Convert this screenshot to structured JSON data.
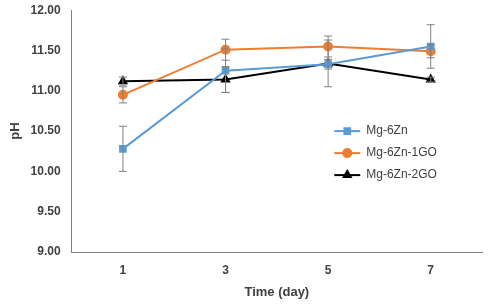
{
  "chart_data": {
    "type": "line",
    "x_label": "Time (day)",
    "y_label": "pH",
    "categories": [
      "1",
      "3",
      "5",
      "7"
    ],
    "series": [
      {
        "name": "Mg-6Zn",
        "color": "#5b9bd5",
        "marker": "square",
        "values": [
          10.28,
          11.25,
          11.33,
          11.55
        ],
        "errors": [
          0.28,
          0.27,
          0.06,
          0.27
        ]
      },
      {
        "name": "Mg-6Zn-1GO",
        "color": "#ed7d31",
        "marker": "circle",
        "values": [
          10.95,
          11.51,
          11.55,
          11.49
        ],
        "errors": [
          0.1,
          0.13,
          0.13,
          0.08
        ]
      },
      {
        "name": "Mg-6Zn-2GO",
        "color": "#000000",
        "marker": "triangle",
        "values": [
          11.12,
          11.14,
          11.34,
          11.14
        ],
        "errors": [
          0.05,
          0.16,
          0.29,
          0.03
        ]
      }
    ],
    "ylim": [
      9,
      12
    ],
    "yticks": [
      {
        "value": 9,
        "label": "9.00"
      },
      {
        "value": 9.5,
        "label": "9.50"
      },
      {
        "value": 10,
        "label": "10.00"
      },
      {
        "value": 10.5,
        "label": "10.50"
      },
      {
        "value": 11,
        "label": "11.00"
      },
      {
        "value": 11.5,
        "label": "11.50"
      },
      {
        "value": 12,
        "label": "12.00"
      }
    ],
    "grid": false,
    "legend": "right"
  }
}
